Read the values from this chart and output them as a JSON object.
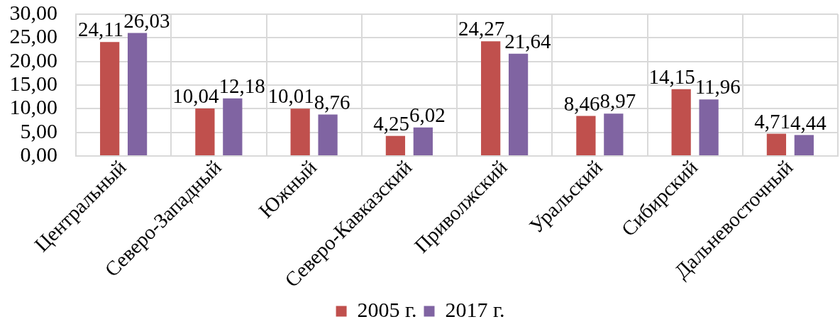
{
  "chart_data": {
    "type": "bar",
    "categories": [
      "Центральный",
      "Северо-Западный",
      "Южный",
      "Северо-Кавказский",
      "Приволжский",
      "Уральский",
      "Сибирский",
      "Дальневосточный"
    ],
    "series": [
      {
        "name": "2005 г.",
        "color": "#c0504d",
        "values": [
          24.11,
          10.04,
          10.01,
          4.25,
          24.27,
          8.46,
          14.15,
          4.71
        ],
        "value_labels": [
          "24,11",
          "10,04",
          "10,01",
          "4,25",
          "24,27",
          "8,46",
          "14,15",
          "4,71"
        ]
      },
      {
        "name": "2017 г.",
        "color": "#8064a2",
        "values": [
          26.03,
          12.18,
          8.76,
          6.02,
          21.64,
          8.97,
          11.96,
          4.44
        ],
        "value_labels": [
          "26,03",
          "12,18",
          "8,76",
          "6,02",
          "21,64",
          "8,97",
          "11,96",
          "4,44"
        ]
      }
    ],
    "ylim": [
      0,
      30
    ],
    "yticks": [
      {
        "value": 0,
        "label": "0,00"
      },
      {
        "value": 5,
        "label": "5,00"
      },
      {
        "value": 10,
        "label": "10,00"
      },
      {
        "value": 15,
        "label": "15,00"
      },
      {
        "value": 20,
        "label": "20,00"
      },
      {
        "value": 25,
        "label": "25,00"
      },
      {
        "value": 30,
        "label": "30,00"
      }
    ],
    "grid": true,
    "legend": "bottom"
  }
}
